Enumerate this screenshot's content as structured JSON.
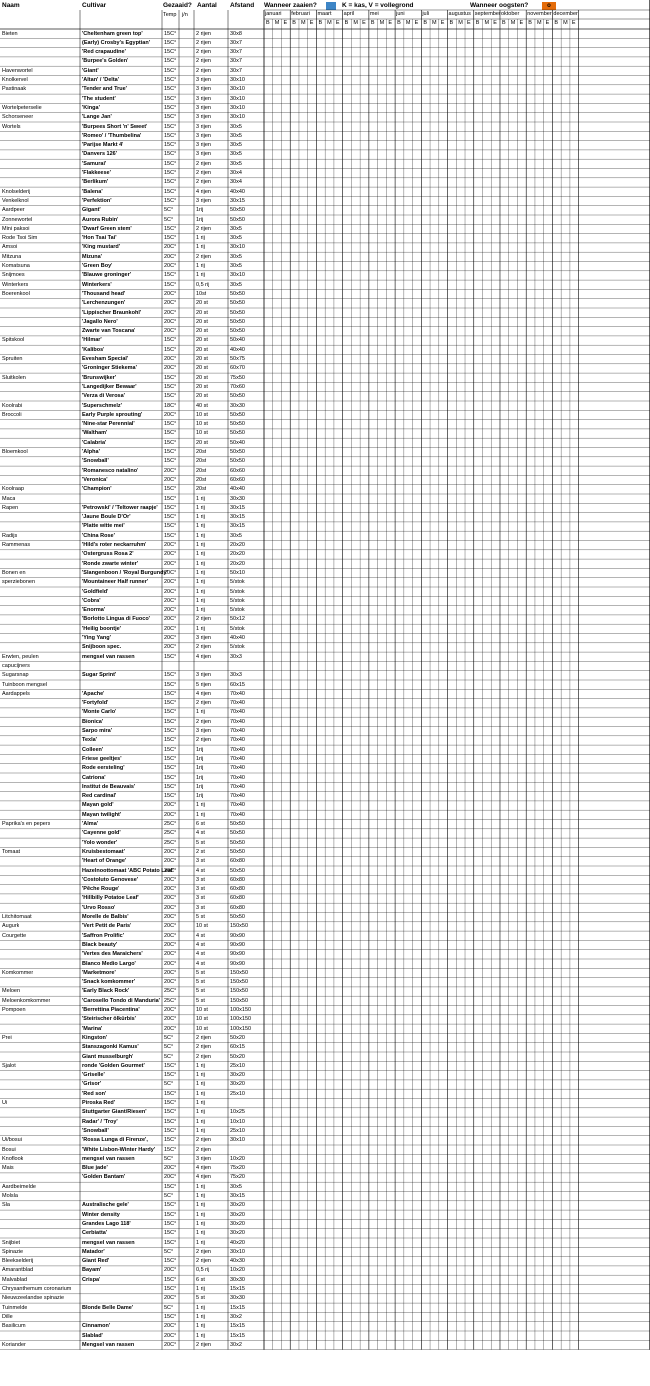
{
  "colors": {
    "sow": "#3d85c6",
    "harvest": "#e46c0a",
    "grid": "#000000"
  },
  "header": {
    "naam": "Naam",
    "cultivar": "Cultivar",
    "gezaaid": "Gezaaid?",
    "aantal": "Aantal",
    "afstand": "Afstand",
    "wanneer_zaaien": "Wanneer zaaien?",
    "legend_sow": "K = kas, V = vollegrond",
    "wanneer_oogsten": "Wanneer oogsten?",
    "legend_harvest": "o",
    "temp": "Temp",
    "jn": "j/n",
    "months": [
      "januari",
      "februari",
      "maart",
      "april",
      "mei",
      "juni",
      "juli",
      "augustus",
      "september",
      "oktober",
      "november",
      "december"
    ],
    "bme": [
      "B",
      "M",
      "E"
    ]
  },
  "rows": [
    {
      "n": "Bieten",
      "c": "'Cheltenham green top'",
      "t": "15C°",
      "a": "2 rijen",
      "d": "30x8"
    },
    {
      "n": "",
      "c": "(Early) Crosby's Egyptian'",
      "t": "15C°",
      "a": "2 rijen",
      "d": "30x7"
    },
    {
      "n": "",
      "c": "'Red crapaudine'",
      "t": "15C°",
      "a": "2 rijen",
      "d": "30x7"
    },
    {
      "n": "",
      "c": "'Burpee's Golden'",
      "t": "15C°",
      "a": "2 rijen",
      "d": "30x7"
    },
    {
      "n": "Havenwortel",
      "c": "'Giant'",
      "t": "15C°",
      "a": "2 rijen",
      "d": "30x7"
    },
    {
      "n": "Knolkervel",
      "c": "'Altan' / 'Delta'",
      "t": "15C°",
      "a": "3 rijen",
      "d": "30x10"
    },
    {
      "n": "Pastinaak",
      "c": "'Tender and True'",
      "t": "15C°",
      "a": "3 rijen",
      "d": "30x10"
    },
    {
      "n": "",
      "c": "'The student'",
      "t": "15C°",
      "a": "3 rijen",
      "d": "30x10"
    },
    {
      "n": "Wortelpeterselie",
      "c": "'Kinga'",
      "t": "15C°",
      "a": "3 rijen",
      "d": "30x10"
    },
    {
      "n": "Schorseneer",
      "c": "'Lange Jan'",
      "t": "15C°",
      "a": "3 rijen",
      "d": "30x10"
    },
    {
      "n": "Wortels",
      "c": "'Burpees Short 'n' Sweet'",
      "t": "15C°",
      "a": "3 rijen",
      "d": "30x5"
    },
    {
      "n": "",
      "c": "'Romeo' / 'Thumbelina'",
      "t": "15C°",
      "a": "3 rijen",
      "d": "30x5"
    },
    {
      "n": "",
      "c": "'Parijse Markt 4'",
      "t": "15C°",
      "a": "3 rijen",
      "d": "30x5"
    },
    {
      "n": "",
      "c": "'Danvers 126'",
      "t": "15C°",
      "a": "3 rijen",
      "d": "30x5"
    },
    {
      "n": "",
      "c": "'Samurai'",
      "t": "15C°",
      "a": "2 rijen",
      "d": "30x5"
    },
    {
      "n": "",
      "c": "'Flakkeese'",
      "t": "15C°",
      "a": "2 rijen",
      "d": "30x4"
    },
    {
      "n": "",
      "c": "'Berlikum'",
      "t": "15C°",
      "a": "2 rijen",
      "d": "30x4"
    },
    {
      "n": "Knolselderij",
      "c": "'Balena'",
      "t": "15C°",
      "a": "4 rijen",
      "d": "40x40"
    },
    {
      "n": "Venkelknol",
      "c": "'Perfektion'",
      "t": "15C°",
      "a": "3 rijen",
      "d": "30x15"
    },
    {
      "n": "Aardpeer",
      "c": "Gigant'",
      "t": "5C°",
      "a": "1rij",
      "d": "50x50"
    },
    {
      "n": "Zonnewortel",
      "c": "Aurora Rubin'",
      "t": "5C°",
      "a": "1rij",
      "d": "50x50"
    },
    {
      "n": "Mini paksoi",
      "c": "'Dwarf Green stem'",
      "t": "15C°",
      "a": "2 rijen",
      "d": "30x5"
    },
    {
      "n": "Rode Tsoi Sim",
      "c": "'Hon Tsai Tai'",
      "t": "15C°",
      "a": "1 rij",
      "d": "30x5"
    },
    {
      "n": "Amsoi",
      "c": "'King mustard'",
      "t": "20C°",
      "a": "1 rij",
      "d": "30x10"
    },
    {
      "n": "Mitzuna",
      "c": "Mizuna'",
      "t": "20C°",
      "a": "2 rijen",
      "d": "30x5"
    },
    {
      "n": "Komatsuna",
      "c": "'Green Boy'",
      "t": "20C°",
      "a": "1 rij",
      "d": "30x5"
    },
    {
      "n": "Snijmoes",
      "c": "'Blauwe groninger'",
      "t": "15C°",
      "a": "1 rij",
      "d": "30x10"
    },
    {
      "n": "Winterkers",
      "c": "Winterkers'",
      "t": "15C°",
      "a": "0,5 rij",
      "d": "30x5"
    },
    {
      "n": "Boerenkool",
      "c": "'Thousand head'",
      "t": "20C°",
      "a": "10st",
      "d": "50x50"
    },
    {
      "n": "",
      "c": "'Lerchenzungen'",
      "t": "20C°",
      "a": "20 st",
      "d": "50x50"
    },
    {
      "n": "",
      "c": "'Lippischer Braunkohl'",
      "t": "20C°",
      "a": "20 st",
      "d": "50x50"
    },
    {
      "n": "",
      "c": "'Jagallo Nero'",
      "t": "20C°",
      "a": "20 st",
      "d": "50x50"
    },
    {
      "n": "",
      "c": "Zwarte van Toscana'",
      "t": "20C°",
      "a": "20 st",
      "d": "50x50"
    },
    {
      "n": "Spitskool",
      "c": "'Hilmar'",
      "t": "15C°",
      "a": "20 st",
      "d": "50x40"
    },
    {
      "n": "",
      "c": "'Kalibos'",
      "t": "15C°",
      "a": "20 st",
      "d": "40x40"
    },
    {
      "n": "Spruiten",
      "c": "Evesham Special'",
      "t": "20C°",
      "a": "20 st",
      "d": "50x75"
    },
    {
      "n": "",
      "c": "'Groninger Stiekema'",
      "t": "20C°",
      "a": "20 st",
      "d": "60x70"
    },
    {
      "n": "Sluitkolen",
      "c": "'Brunswijker'",
      "t": "15C°",
      "a": "20 st",
      "d": "75x50"
    },
    {
      "n": "",
      "c": "'Langedijker Bewaar'",
      "t": "15C°",
      "a": "20 st",
      "d": "70x60"
    },
    {
      "n": "",
      "c": "'Verza di Verosa'",
      "t": "15C°",
      "a": "20 st",
      "d": "50x50"
    },
    {
      "n": "Koolrabi",
      "c": "'Superschmelz'",
      "t": "18C°",
      "a": "40 st",
      "d": "30x30"
    },
    {
      "n": "Broccoli",
      "c": "Early Purple sprouting'",
      "t": "20C°",
      "a": "10 st",
      "d": "50x50"
    },
    {
      "n": "",
      "c": "'Nine-star Perennial'",
      "t": "15C°",
      "a": "10 st",
      "d": "50x50"
    },
    {
      "n": "",
      "c": "'Waltham'",
      "t": "15C°",
      "a": "10 st",
      "d": "50x50"
    },
    {
      "n": "",
      "c": "'Calabria'",
      "t": "15C°",
      "a": "20 st",
      "d": "50x40"
    },
    {
      "n": "Bloemkool",
      "c": "'Alpha'",
      "t": "15C°",
      "a": "20st",
      "d": "50x50"
    },
    {
      "n": "",
      "c": "'Snowball'",
      "t": "15C°",
      "a": "20st",
      "d": "50x50"
    },
    {
      "n": "",
      "c": "'Romanesco natalino'",
      "t": "20C°",
      "a": "20st",
      "d": "60x60"
    },
    {
      "n": "",
      "c": "'Veronica'",
      "t": "20C°",
      "a": "20st",
      "d": "60x60"
    },
    {
      "n": "Koolraap",
      "c": "'Champion'",
      "t": "15C°",
      "a": "20st",
      "d": "40x40"
    },
    {
      "n": "Maca",
      "c": "",
      "t": "15C°",
      "a": "1 rij",
      "d": "30x30"
    },
    {
      "n": "Rapen",
      "c": "'Petrowski' / 'Teltower raapje'",
      "t": "15C°",
      "a": "1 rij",
      "d": "30x15"
    },
    {
      "n": "",
      "c": "'Jaune Boule D'Or'",
      "t": "15C°",
      "a": "1 rij",
      "d": "30x15"
    },
    {
      "n": "",
      "c": "'Platte witte mei'",
      "t": "15C°",
      "a": "1 rij",
      "d": "30x15"
    },
    {
      "n": "Radijs",
      "c": "'China Rose'",
      "t": "15C°",
      "a": "1 rij",
      "d": "30x5"
    },
    {
      "n": "Rammenas",
      "c": "'Hild's roter neckarruhm'",
      "t": "20C°",
      "a": "1 rij",
      "d": "20x20"
    },
    {
      "n": "",
      "c": "'Ostergruss Rosa 2'",
      "t": "20C°",
      "a": "1 rij",
      "d": "20x20"
    },
    {
      "n": "",
      "c": "'Ronde zwarte winter'",
      "t": "20C°",
      "a": "1 rij",
      "d": "20x20"
    },
    {
      "n": "Bonen en",
      "c": "'Slangenboon / 'Royal Burgundy'",
      "t": "20C°",
      "a": "1 rij",
      "d": "50x10"
    },
    {
      "n": "sperziebonen",
      "c": "'Mountaineer Half runner'",
      "t": "20C°",
      "a": "1 rij",
      "d": "5/stok"
    },
    {
      "n": "",
      "c": "'Goldfield'",
      "t": "20C°",
      "a": "1 rij",
      "d": "5/stok"
    },
    {
      "n": "",
      "c": "'Cobra'",
      "t": "20C°",
      "a": "1 rij",
      "d": "5/stok"
    },
    {
      "n": "",
      "c": "'Enorma'",
      "t": "20C°",
      "a": "1 rij",
      "d": "5/stok"
    },
    {
      "n": "",
      "c": "'Borlotto Lingua di Fuoco'",
      "t": "20C°",
      "a": "2 rijen",
      "d": "50x12"
    },
    {
      "n": "",
      "c": "'Heilig boontje'",
      "t": "20C°",
      "a": "1 rij",
      "d": "5/stok"
    },
    {
      "n": "",
      "c": "'Ying Yang'",
      "t": "20C°",
      "a": "3 rijen",
      "d": "40x40"
    },
    {
      "n": "",
      "c": "Snijboon spec.",
      "t": "20C°",
      "a": "2 rijen",
      "d": "5/stok"
    },
    {
      "n": "Erwten, peulen",
      "c": "mengsel van rassen",
      "t": "15C°",
      "a": "4 rijen",
      "d": "30x3"
    },
    {
      "n": "capucijners",
      "c": "",
      "t": "",
      "a": "",
      "d": ""
    },
    {
      "n": "Sugarsnap",
      "c": "Sugar Sprint'",
      "t": "15C°",
      "a": "3 rijen",
      "d": "30x3"
    },
    {
      "n": "Tuinboon mengsel",
      "c": "",
      "t": "15C°",
      "a": "5 rijen",
      "d": "60x15"
    },
    {
      "n": "Aardappels",
      "c": "'Apache'",
      "t": "15C°",
      "a": "4 rijen",
      "d": "70x40"
    },
    {
      "n": "",
      "c": "'Fortyfold'",
      "t": "15C°",
      "a": "2 rijen",
      "d": "70x40"
    },
    {
      "n": "",
      "c": "'Monte Carlo'",
      "t": "15C°",
      "a": "1 rij",
      "d": "70x40"
    },
    {
      "n": "",
      "c": "Bionica'",
      "t": "15C°",
      "a": "2 rijen",
      "d": "70x40"
    },
    {
      "n": "",
      "c": "Sarpo mira'",
      "t": "15C°",
      "a": "3 rijen",
      "d": "70x40"
    },
    {
      "n": "",
      "c": "Texla'",
      "t": "15C°",
      "a": "2 rijen",
      "d": "70x40"
    },
    {
      "n": "",
      "c": "Colleen'",
      "t": "15C°",
      "a": "1rij",
      "d": "70x40"
    },
    {
      "n": "",
      "c": "Friese geeltjes'",
      "t": "15C°",
      "a": "1rij",
      "d": "70x40"
    },
    {
      "n": "",
      "c": "Rode eersteling'",
      "t": "15C°",
      "a": "1rij",
      "d": "70x40"
    },
    {
      "n": "",
      "c": "Catriona'",
      "t": "15C°",
      "a": "1rij",
      "d": "70x40"
    },
    {
      "n": "",
      "c": "Institut de Beauvais'",
      "t": "15C°",
      "a": "1rij",
      "d": "70x40"
    },
    {
      "n": "",
      "c": "Red cardinal'",
      "t": "15C°",
      "a": "1rij",
      "d": "70x40"
    },
    {
      "n": "",
      "c": "Mayan gold'",
      "t": "20C°",
      "a": "1 rij",
      "d": "70x40"
    },
    {
      "n": "",
      "c": "Mayan twilight'",
      "t": "20C°",
      "a": "1 rij",
      "d": "70x40"
    },
    {
      "n": "Paprika's en pepers",
      "c": "'Alma'",
      "t": "25C°",
      "a": "6 st",
      "d": "50x50"
    },
    {
      "n": "",
      "c": "'Cayenne gold'",
      "t": "25C°",
      "a": "4 st",
      "d": "50x50"
    },
    {
      "n": "",
      "c": "'Yolo wonder'",
      "t": "25C°",
      "a": "5 st",
      "d": "50x50"
    },
    {
      "n": "Tomaat",
      "c": "Kruisbestomaat'",
      "t": "20C°",
      "a": "2 st",
      "d": "50x50"
    },
    {
      "n": "",
      "c": "'Heart of Orange'",
      "t": "20C°",
      "a": "3 st",
      "d": "60x80"
    },
    {
      "n": "",
      "c": "Hazelnoottomaat 'ABC Potato Leaf'",
      "t": "20C°",
      "a": "4 st",
      "d": "50x50"
    },
    {
      "n": "",
      "c": "'Costoluto Genovese'",
      "t": "20C°",
      "a": "3 st",
      "d": "60x80"
    },
    {
      "n": "",
      "c": "'Pêche Rouge'",
      "t": "20C°",
      "a": "3 st",
      "d": "60x80"
    },
    {
      "n": "",
      "c": "'Hillbilly Potatoe Leaf'",
      "t": "20C°",
      "a": "3 st",
      "d": "60x80"
    },
    {
      "n": "",
      "c": "'Urvo Rosso'",
      "t": "20C°",
      "a": "3 st",
      "d": "60x80"
    },
    {
      "n": "Litchitomaat",
      "c": "Morelle de Balbis'",
      "t": "20C°",
      "a": "5 st",
      "d": "50x50"
    },
    {
      "n": "Augurk",
      "c": "'Vert Petit de Paris'",
      "t": "20C°",
      "a": "10 st",
      "d": "150x50"
    },
    {
      "n": "Courgette",
      "c": "'Saffron Prolific'",
      "t": "20C°",
      "a": "4 st",
      "d": "90x90"
    },
    {
      "n": "",
      "c": "Black beauty'",
      "t": "20C°",
      "a": "4 st",
      "d": "90x90"
    },
    {
      "n": "",
      "c": "'Vertes des Maraichers'",
      "t": "20C°",
      "a": "4 st",
      "d": "90x90"
    },
    {
      "n": "",
      "c": "Blanco Medio Largo'",
      "t": "20C°",
      "a": "4 st",
      "d": "90x90"
    },
    {
      "n": "Komkommer",
      "c": "'Marketmore'",
      "t": "20C°",
      "a": "5 st",
      "d": "150x50"
    },
    {
      "n": "",
      "c": "'Snack komkommer'",
      "t": "20C°",
      "a": "5 st",
      "d": "150x50"
    },
    {
      "n": "Meloen",
      "c": "'Early Black Rock'",
      "t": "25C°",
      "a": "5 st",
      "d": "150x50"
    },
    {
      "n": "Meloenkomkommer",
      "c": "'Carosello Tondo di Manduria'",
      "t": "25C°",
      "a": "5 st",
      "d": "150x50"
    },
    {
      "n": "Pompoen",
      "c": "'Berrettina Piacentina'",
      "t": "20C°",
      "a": "10 st",
      "d": "100x150"
    },
    {
      "n": "",
      "c": "'Steirischer ölkürbis'",
      "t": "20C°",
      "a": "10 st",
      "d": "100x150"
    },
    {
      "n": "",
      "c": "'Marina'",
      "t": "20C°",
      "a": "10 st",
      "d": "100x150"
    },
    {
      "n": "Prei",
      "c": "Kingston'",
      "t": "5C°",
      "a": "2 rijen",
      "d": "50x20"
    },
    {
      "n": "",
      "c": "Stanszagonki Kamus'",
      "t": "5C°",
      "a": "2 rijen",
      "d": "60x15"
    },
    {
      "n": "",
      "c": "Giant musselburgh'",
      "t": "5C°",
      "a": "2 rijen",
      "d": "50x20"
    },
    {
      "n": "Sjalot",
      "c": "ronde 'Golden Gourmet'",
      "t": "15C°",
      "a": "1 rij",
      "d": "25x10"
    },
    {
      "n": "",
      "c": "'Griselle'",
      "t": "15C°",
      "a": "1 rij",
      "d": "30x20"
    },
    {
      "n": "",
      "c": "'Grisor'",
      "t": "5C°",
      "a": "1 rij",
      "d": "30x20"
    },
    {
      "n": "",
      "c": "'Red son'",
      "t": "15C°",
      "a": "1 rij",
      "d": "25x10"
    },
    {
      "n": "Ui",
      "c": "Piroska Red'",
      "t": "15C°",
      "a": "1 rij",
      "d": ""
    },
    {
      "n": "",
      "c": "Stuttgarter Giant/Riesen'",
      "t": "15C°",
      "a": "1 rij",
      "d": "10x25"
    },
    {
      "n": "",
      "c": "Radar' / 'Troy'",
      "t": "15C°",
      "a": "1 rij",
      "d": "10x10"
    },
    {
      "n": "",
      "c": "'Snowball'",
      "t": "15C°",
      "a": "1 rij",
      "d": "25x10"
    },
    {
      "n": "Ui/bosui",
      "c": "'Rossa Lunga di Firenze',",
      "t": "15C°",
      "a": "2 rijen",
      "d": "30x10"
    },
    {
      "n": "Bosui",
      "c": "'White Lisbon-Winter Hardy'",
      "t": "15C°",
      "a": "2 rijen",
      "d": ""
    },
    {
      "n": "Knoflook",
      "c": "mengsel van rassen",
      "t": "5C°",
      "a": "3 rijen",
      "d": "10x20"
    },
    {
      "n": "Mais",
      "c": "Blue jade'",
      "t": "20C°",
      "a": "4 rijen",
      "d": "75x20"
    },
    {
      "n": "",
      "c": "'Golden Bantam'",
      "t": "20C°",
      "a": "4 rijen",
      "d": "75x20"
    },
    {
      "n": "Aardbeimelde",
      "c": "",
      "t": "15C°",
      "a": "1 rij",
      "d": "30x5"
    },
    {
      "n": "Molsla",
      "c": "",
      "t": "5C°",
      "a": "1 rij",
      "d": "30x15"
    },
    {
      "n": "Sla",
      "c": "Australische gele'",
      "t": "15C°",
      "a": "1 rij",
      "d": "30x20"
    },
    {
      "n": "",
      "c": "Winter density",
      "t": "15C°",
      "a": "1 rij",
      "d": "30x20"
    },
    {
      "n": "",
      "c": "Grandes Lago 118'",
      "t": "15C°",
      "a": "1 rij",
      "d": "30x20"
    },
    {
      "n": "",
      "c": "Cerbiatta'",
      "t": "15C°",
      "a": "1 rij",
      "d": "30x20"
    },
    {
      "n": "Snijbiet",
      "c": "mengsel van rassen",
      "t": "15C°",
      "a": "1 rij",
      "d": "40x20"
    },
    {
      "n": "Spinazie",
      "c": "Matador'",
      "t": "5C°",
      "a": "2 rijen",
      "d": "30x10"
    },
    {
      "n": "Bleekselderij",
      "c": "Giant Red'",
      "t": "15C°",
      "a": "2 rijen",
      "d": "40x30"
    },
    {
      "n": "Amarantblad",
      "c": "Bayam'",
      "t": "20C°",
      "a": "0,5 rij",
      "d": "10x20"
    },
    {
      "n": "Malvablad",
      "c": "Crispa'",
      "t": "15C°",
      "a": "6 st",
      "d": "30x30"
    },
    {
      "n": "Chrysanthemum coronarium",
      "c": "",
      "t": "15C°",
      "a": "1 rij",
      "d": "15x15"
    },
    {
      "n": "Nieuwzeelandse spinazie",
      "c": "",
      "t": "20C°",
      "a": "5 st",
      "d": "30x30"
    },
    {
      "n": "Tuinmelde",
      "c": "Blonde Belle Dame'",
      "t": "5C°",
      "a": "1 rij",
      "d": "15x15"
    },
    {
      "n": "Dille",
      "c": "",
      "t": "15C°",
      "a": "1 rij",
      "d": "30x2"
    },
    {
      "n": "Basilicum",
      "c": "Cinnamon'",
      "t": "20C°",
      "a": "1 rij",
      "d": "15x15"
    },
    {
      "n": "",
      "c": "Slablad'",
      "t": "20C°",
      "a": "1 rij",
      "d": "15x15"
    },
    {
      "n": "Koriander",
      "c": "Mengsel van rassen",
      "t": "20C°",
      "a": "2 rijen",
      "d": "30x2"
    }
  ]
}
